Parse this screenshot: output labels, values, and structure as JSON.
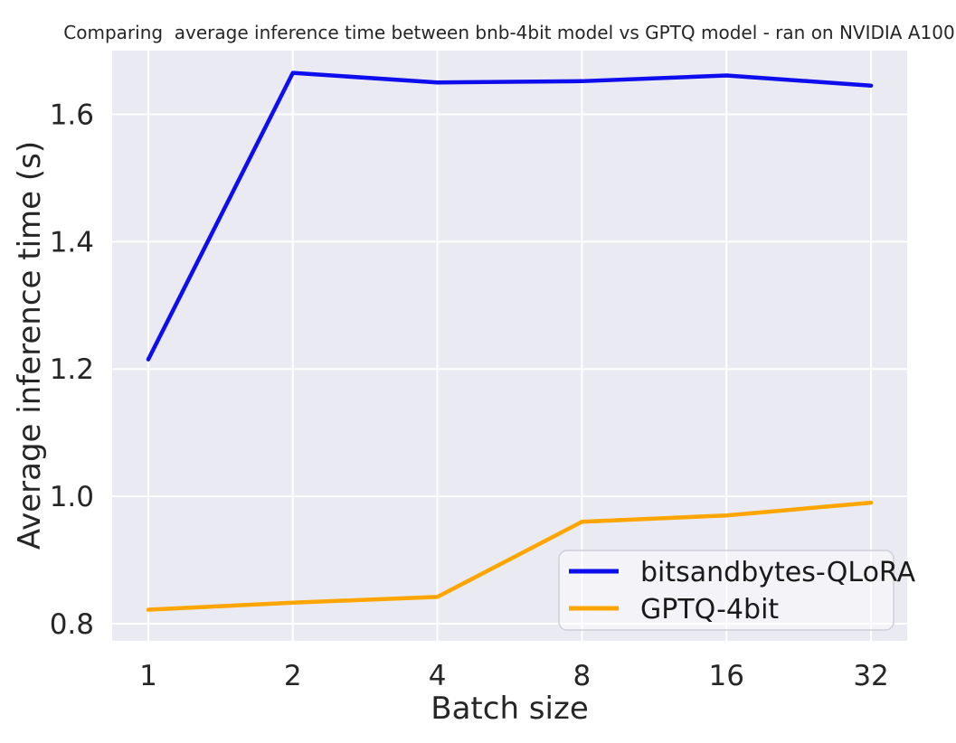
{
  "title": "Comparing  average inference time between bnb-4bit model vs GPTQ model - ran on NVIDIA A100",
  "chart_data": {
    "type": "line",
    "title": "Comparing  average inference time between bnb-4bit model vs GPTQ model - ran on NVIDIA A100",
    "xlabel": "Batch size",
    "ylabel": "Average inference time (s)",
    "x_scale": "log2",
    "categories": [
      "1",
      "2",
      "4",
      "8",
      "16",
      "32"
    ],
    "series": [
      {
        "name": "bitsandbytes-QLoRA",
        "color": "#0d0dee",
        "values": [
          1.215,
          1.665,
          1.65,
          1.652,
          1.661,
          1.645
        ]
      },
      {
        "name": "GPTQ-4bit",
        "color": "#ffa500",
        "values": [
          0.822,
          0.833,
          0.842,
          0.96,
          0.97,
          0.99
        ]
      }
    ],
    "yticks": [
      0.8,
      1.0,
      1.2,
      1.4,
      1.6
    ],
    "ytick_labels": [
      "0.8",
      "1.0",
      "1.2",
      "1.4",
      "1.6"
    ],
    "ylim": [
      0.773,
      1.7
    ],
    "xlim_units": [
      -0.25,
      5.25
    ],
    "grid": true,
    "legend_position": "lower right",
    "axes_background": "#eaeaf2",
    "grid_color": "#ffffff",
    "text_color": "#262626",
    "legend_background": "rgba(255,255,255,0.45)",
    "legend_border": "#cfcfd8"
  }
}
